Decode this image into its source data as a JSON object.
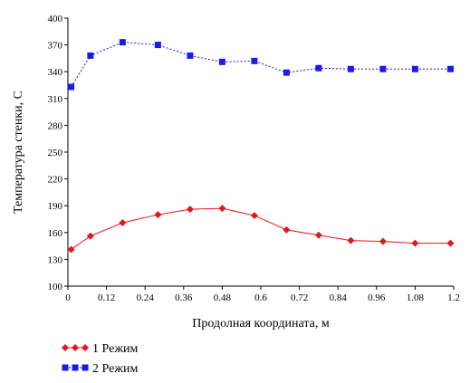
{
  "chart_data": {
    "type": "line",
    "xlabel": "Продолная координата, м",
    "ylabel": "Температура стенки, С",
    "xlim": [
      0,
      1.2
    ],
    "ylim": [
      100,
      400
    ],
    "xticks": [
      "0",
      "0.12",
      "0.24",
      "0.36",
      "0.48",
      "0.6",
      "0.72",
      "0.84",
      "0.96",
      "1.08",
      "1.2"
    ],
    "yticks": [
      "100",
      "130",
      "160",
      "190",
      "220",
      "250",
      "280",
      "310",
      "340",
      "370",
      "400"
    ],
    "grid": false,
    "legend_position": "bottom-left",
    "x": [
      0.01,
      0.07,
      0.17,
      0.28,
      0.38,
      0.48,
      0.58,
      0.68,
      0.78,
      0.88,
      0.98,
      1.08,
      1.19
    ],
    "series": [
      {
        "name": "1 Режим",
        "color": "#e8141c",
        "marker": "diamond",
        "line": "solid",
        "values": [
          141,
          156,
          171,
          180,
          186,
          187,
          179,
          163,
          157,
          151,
          150,
          148,
          148
        ]
      },
      {
        "name": "2 Режим",
        "color": "#1a1aef",
        "marker": "square",
        "line": "dotted",
        "values": [
          323,
          358,
          373,
          370,
          358,
          351,
          352,
          339,
          344,
          343,
          343,
          343,
          343
        ]
      }
    ]
  }
}
